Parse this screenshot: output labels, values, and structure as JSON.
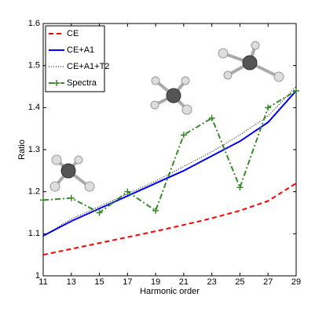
{
  "chart_data": {
    "type": "line",
    "x_label": "Harmonic order",
    "y_label": "Ratio",
    "x": [
      11,
      13,
      15,
      17,
      19,
      21,
      23,
      25,
      27,
      29
    ],
    "series": [
      {
        "name": "CE",
        "color": "#ff0000",
        "style": "dashed",
        "values": [
          1.05,
          1.064,
          1.078,
          1.092,
          1.106,
          1.121,
          1.137,
          1.155,
          1.178,
          1.22
        ]
      },
      {
        "name": "CE+A1",
        "color": "#0000ff",
        "style": "solid",
        "values": [
          1.095,
          1.13,
          1.16,
          1.19,
          1.22,
          1.25,
          1.285,
          1.32,
          1.365,
          1.44
        ]
      },
      {
        "name": "CE+A1+T2",
        "color": "#000000",
        "style": "dotted",
        "values": [
          1.095,
          1.135,
          1.165,
          1.195,
          1.225,
          1.26,
          1.295,
          1.335,
          1.38,
          1.45
        ]
      },
      {
        "name": "Spectra",
        "color": "#3a8a2a",
        "style": "dashdot",
        "values": [
          1.18,
          1.185,
          1.15,
          1.2,
          1.155,
          1.335,
          1.375,
          1.21,
          1.4,
          1.44
        ]
      }
    ],
    "xlim": [
      11,
      29
    ],
    "xticks": [
      11,
      13,
      15,
      17,
      19,
      21,
      23,
      25,
      27,
      29
    ],
    "ylim": [
      1,
      1.6
    ],
    "yticks": [
      1,
      1.1,
      1.2,
      1.3,
      1.4,
      1.5,
      1.6
    ],
    "legend": "upper left"
  }
}
